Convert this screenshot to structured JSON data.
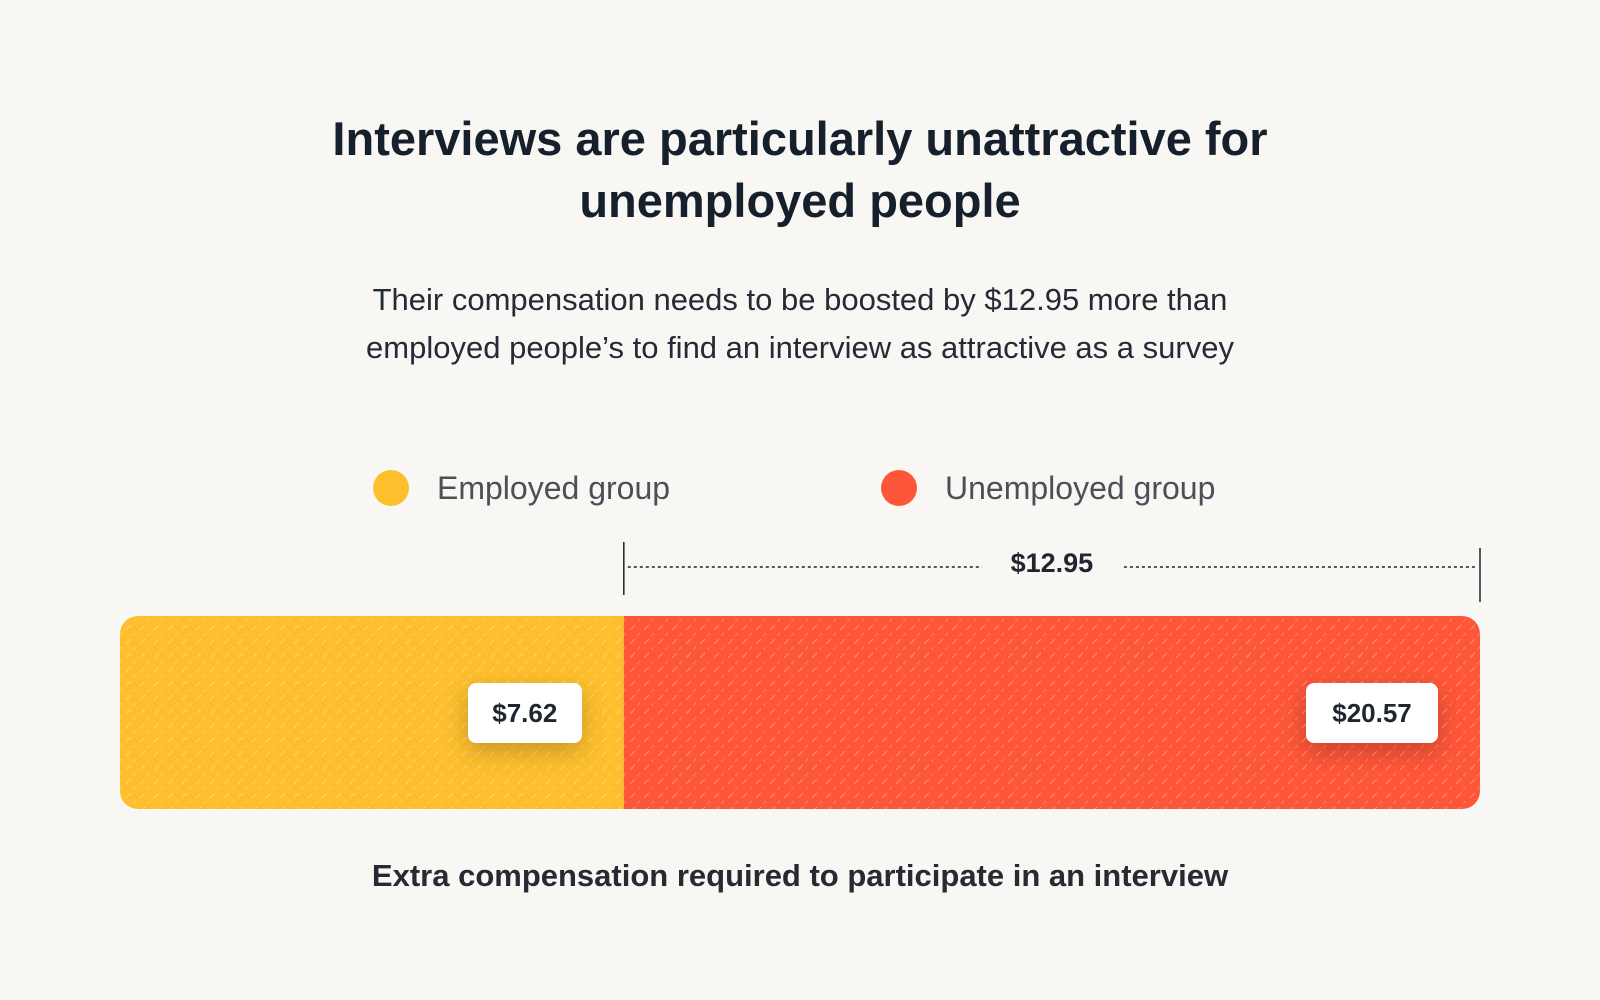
{
  "title_line1": "Interviews are particularly unattractive for",
  "title_line2": "unemployed people",
  "subtitle_line1": "Their compensation needs to be boosted by $12.95 more than",
  "subtitle_line2": "employed people’s to find an interview as attractive as a survey",
  "caption": "Extra compensation required to participate in an interview",
  "colors": {
    "background": "#f9f7f3",
    "employed": "#fdbf2d",
    "unemployed": "#fe5638"
  },
  "chart_data": {
    "type": "bar",
    "orientation": "horizontal-stacked",
    "categories": [
      "Employed group",
      "Unemployed group"
    ],
    "values": [
      7.62,
      20.57
    ],
    "value_labels": [
      "$7.62",
      "$20.57"
    ],
    "difference": 12.95,
    "difference_label": "$12.95",
    "legend": [
      "Employed group",
      "Unemployed group"
    ],
    "legend_position": "top",
    "xlim": [
      0,
      20.57
    ],
    "grid": false
  }
}
